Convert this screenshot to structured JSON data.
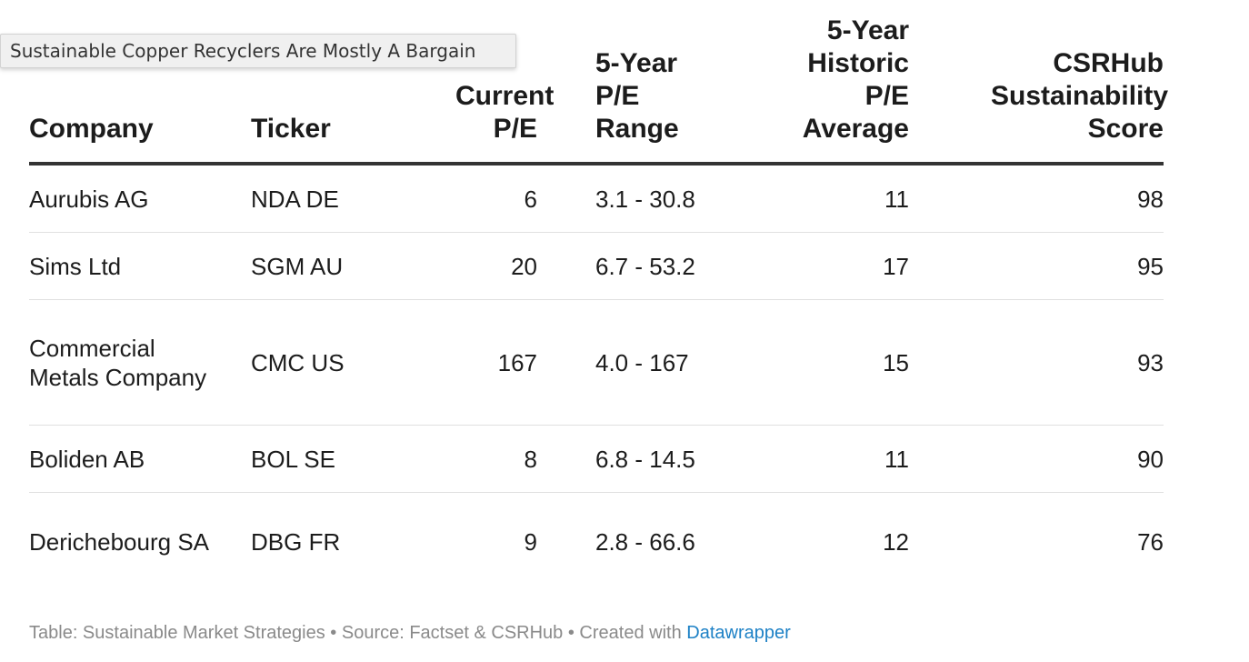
{
  "tooltip": {
    "text": "Sustainable Copper Recyclers Are Mostly A Bargain"
  },
  "table": {
    "headers": {
      "company": "Company",
      "ticker": "Ticker",
      "current_pe": "Current P/E",
      "range": "5-Year P/E Range",
      "historic_avg": "5-Year Historic P/E Average",
      "score": "CSRHub Sustainability Score"
    },
    "rows": [
      {
        "company": "Aurubis AG",
        "ticker": "NDA DE",
        "current_pe": "6",
        "range": "3.1 - 30.8",
        "historic_avg": "11",
        "score": "98"
      },
      {
        "company": "Sims Ltd",
        "ticker": "SGM AU",
        "current_pe": "20",
        "range": "6.7 - 53.2",
        "historic_avg": "17",
        "score": "95"
      },
      {
        "company": "Commercial Metals Company",
        "ticker": "CMC US",
        "current_pe": "167",
        "range": "4.0 - 167",
        "historic_avg": "15",
        "score": "93"
      },
      {
        "company": "Boliden AB",
        "ticker": "BOL SE",
        "current_pe": "8",
        "range": "6.8 - 14.5",
        "historic_avg": "11",
        "score": "90"
      },
      {
        "company": "Derichebourg SA",
        "ticker": "DBG FR",
        "current_pe": "9",
        "range": "2.8 - 66.6",
        "historic_avg": "12",
        "score": "76"
      }
    ]
  },
  "footer": {
    "table_credit": "Table: Sustainable Market Strategies",
    "separator": " • ",
    "source": "Source: Factset & CSRHub",
    "created_with": "Created with ",
    "link_text": "Datawrapper"
  },
  "colors": {
    "link": "#1d81c6",
    "footer_text": "#8a8a8a",
    "header_rule": "#333333",
    "row_rule": "#e0e0e0"
  }
}
